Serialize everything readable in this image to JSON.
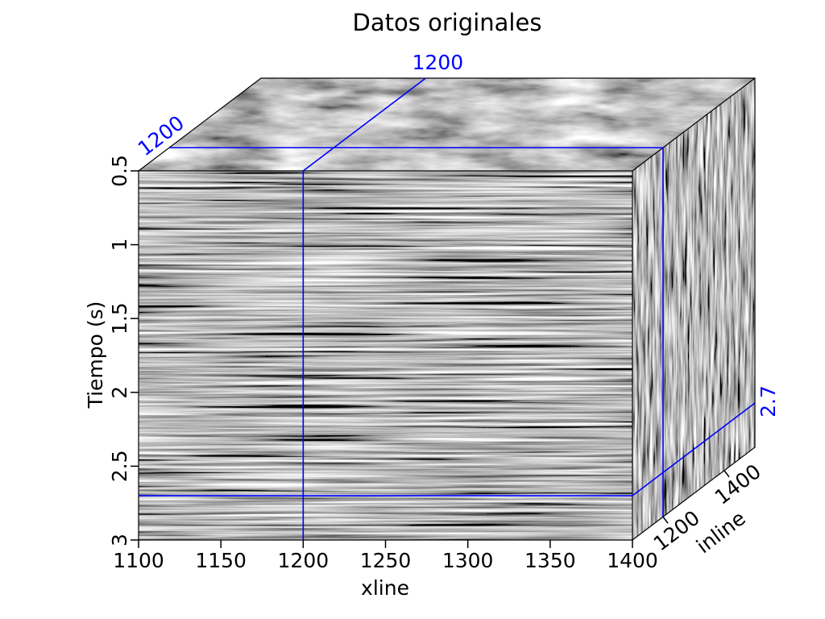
{
  "chart_data": {
    "type": "seismic-cube",
    "title": "Datos originales",
    "xlabel": "xline",
    "ylabel": "Tiempo (s)",
    "zlabel": "inline",
    "xlim": [
      1100,
      1400
    ],
    "ylim": [
      0.5,
      3
    ],
    "zlim": [
      1100,
      1500
    ],
    "x_ticks": [
      "1100",
      "1150",
      "1200",
      "1250",
      "1300",
      "1350",
      "1400"
    ],
    "y_ticks": [
      "0.5",
      "1",
      "1.5",
      "2",
      "2.5",
      "3"
    ],
    "z_ticks": [
      "1200",
      "1400"
    ],
    "slices": {
      "xline": {
        "value": 1200,
        "label": "1200"
      },
      "inline": {
        "value": 1200,
        "label": "1200"
      },
      "time": {
        "value": 2.7,
        "label": "2.7"
      }
    },
    "colormap": "grayscale",
    "line_color": "#0000ff"
  }
}
